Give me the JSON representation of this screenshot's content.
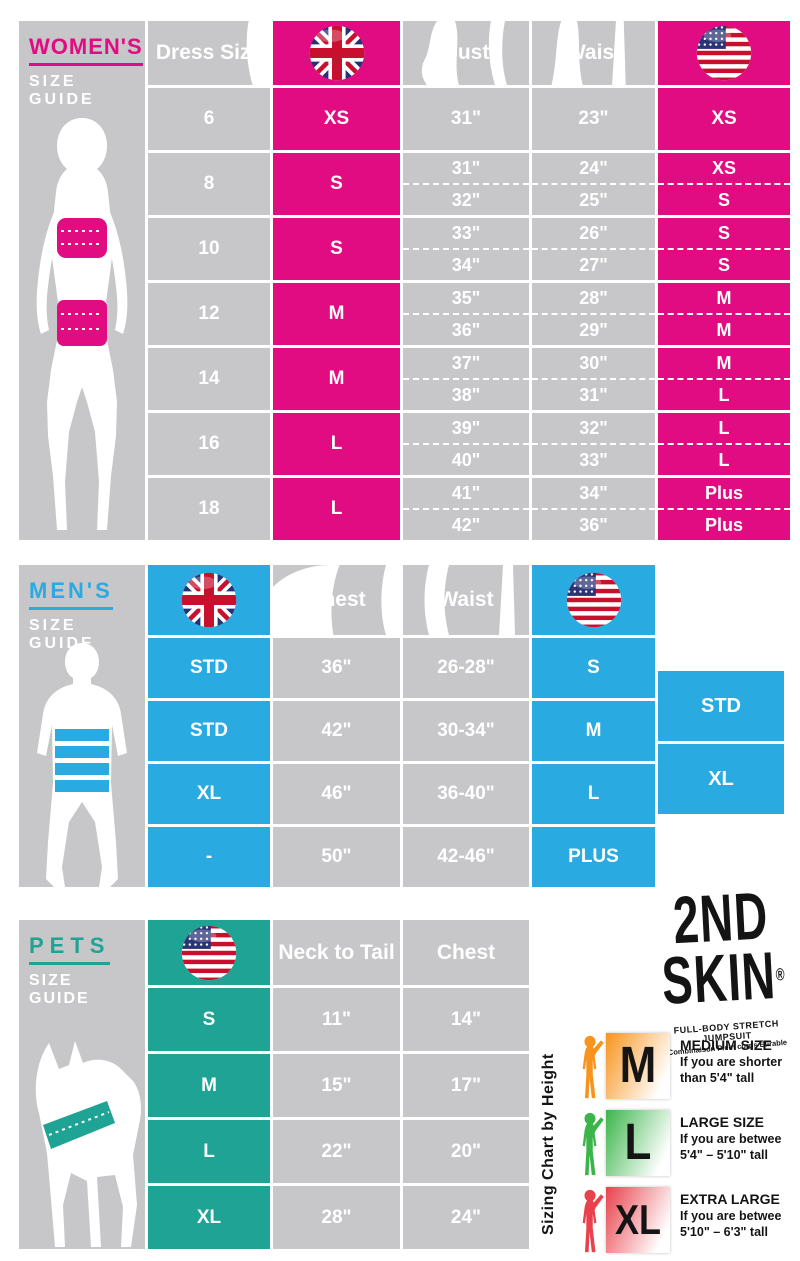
{
  "colors": {
    "pink": "#E20C82",
    "blue": "#29ABE2",
    "teal": "#1FA394",
    "gray": "#C7C6C8"
  },
  "women": {
    "title": "WOMEN'S",
    "subtitle": "SIZE GUIDE",
    "headers": {
      "dress": "Dress Size",
      "bust": "Bust",
      "waist": "Waist"
    },
    "rows": [
      {
        "dress": "6",
        "uk": "XS",
        "bust": [
          "31\""
        ],
        "waist": [
          "23\""
        ],
        "us": [
          "XS"
        ]
      },
      {
        "dress": "8",
        "uk": "S",
        "bust": [
          "31\"",
          "32\""
        ],
        "waist": [
          "24\"",
          "25\""
        ],
        "us": [
          "XS",
          "S"
        ]
      },
      {
        "dress": "10",
        "uk": "S",
        "bust": [
          "33\"",
          "34\""
        ],
        "waist": [
          "26\"",
          "27\""
        ],
        "us": [
          "S",
          "S"
        ]
      },
      {
        "dress": "12",
        "uk": "M",
        "bust": [
          "35\"",
          "36\""
        ],
        "waist": [
          "28\"",
          "29\""
        ],
        "us": [
          "M",
          "M"
        ]
      },
      {
        "dress": "14",
        "uk": "M",
        "bust": [
          "37\"",
          "38\""
        ],
        "waist": [
          "30\"",
          "31\""
        ],
        "us": [
          "M",
          "L"
        ]
      },
      {
        "dress": "16",
        "uk": "L",
        "bust": [
          "39\"",
          "40\""
        ],
        "waist": [
          "32\"",
          "33\""
        ],
        "us": [
          "L",
          "L"
        ]
      },
      {
        "dress": "18",
        "uk": "L",
        "bust": [
          "41\"",
          "42\""
        ],
        "waist": [
          "34\"",
          "36\""
        ],
        "us": [
          "Plus",
          "Plus"
        ]
      }
    ]
  },
  "men": {
    "title": "MEN'S",
    "subtitle": "SIZE GUIDE",
    "headers": {
      "chest": "Chest",
      "waist": "Waist"
    },
    "rows": [
      {
        "uk": "STD",
        "chest": "36\"",
        "waist": "26-28\"",
        "us": "S"
      },
      {
        "uk": "STD",
        "chest": "42\"",
        "waist": "30-34\"",
        "us": "M"
      },
      {
        "uk": "XL",
        "chest": "46\"",
        "waist": "36-40\"",
        "us": "L"
      },
      {
        "uk": "-",
        "chest": "50\"",
        "waist": "42-46\"",
        "us": "PLUS"
      }
    ],
    "side_boxes": [
      "STD",
      "XL"
    ]
  },
  "pets": {
    "title": "PETS",
    "subtitle": "SIZE GUIDE",
    "headers": {
      "neck": "Neck to Tail",
      "chest": "Chest"
    },
    "rows": [
      {
        "us": "S",
        "neck": "11\"",
        "chest": "14\""
      },
      {
        "us": "M",
        "neck": "15\"",
        "chest": "17\""
      },
      {
        "us": "L",
        "neck": "22\"",
        "chest": "20\""
      },
      {
        "us": "XL",
        "neck": "28\"",
        "chest": "24\""
      }
    ]
  },
  "logo": {
    "line1": "2ND",
    "line2": "SKIN",
    "reg": "®",
    "tagline1": "FULL-BODY STRETCH JUMPSUIT",
    "tagline2": "Combinaison Plein corps Étirable"
  },
  "legend": {
    "vertical_label": "Sizing Chart by Height",
    "items": [
      {
        "letter": "M",
        "heading": "MEDIUM SIZE",
        "line1": "If you are shorter",
        "line2": "than 5'4\" tall"
      },
      {
        "letter": "L",
        "heading": "LARGE SIZE",
        "line1": "If you are betwee",
        "line2": "5'4\" – 5'10\" tall"
      },
      {
        "letter": "XL",
        "heading": "EXTRA LARGE",
        "line1": "If you are betwee",
        "line2": "5'10\" – 6'3\" tall"
      }
    ]
  },
  "chart_data": [
    {
      "type": "table",
      "title": "Women's Size Guide",
      "columns": [
        "Dress Size",
        "UK Size",
        "Bust",
        "Waist",
        "US Size"
      ],
      "rows": [
        [
          "6",
          "XS",
          "31\"",
          "23\"",
          "XS"
        ],
        [
          "8",
          "S",
          "31\" / 32\"",
          "24\" / 25\"",
          "XS / S"
        ],
        [
          "10",
          "S",
          "33\" / 34\"",
          "26\" / 27\"",
          "S / S"
        ],
        [
          "12",
          "M",
          "35\" / 36\"",
          "28\" / 29\"",
          "M / M"
        ],
        [
          "14",
          "M",
          "37\" / 38\"",
          "30\" / 31\"",
          "M / L"
        ],
        [
          "16",
          "L",
          "39\" / 40\"",
          "32\" / 33\"",
          "L / L"
        ],
        [
          "18",
          "L",
          "41\" / 42\"",
          "34\" / 36\"",
          "Plus / Plus"
        ]
      ]
    },
    {
      "type": "table",
      "title": "Men's Size Guide",
      "columns": [
        "UK Size",
        "Chest",
        "Waist",
        "US Size"
      ],
      "rows": [
        [
          "STD",
          "36\"",
          "26-28\"",
          "S"
        ],
        [
          "STD",
          "42\"",
          "30-34\"",
          "M"
        ],
        [
          "XL",
          "46\"",
          "36-40\"",
          "L"
        ],
        [
          "-",
          "50\"",
          "42-46\"",
          "PLUS"
        ]
      ],
      "annotations": [
        "STD",
        "XL"
      ]
    },
    {
      "type": "table",
      "title": "Pets Size Guide",
      "columns": [
        "US Size",
        "Neck to Tail",
        "Chest"
      ],
      "rows": [
        [
          "S",
          "11\"",
          "14\""
        ],
        [
          "M",
          "15\"",
          "17\""
        ],
        [
          "L",
          "22\"",
          "20\""
        ],
        [
          "XL",
          "28\"",
          "24\""
        ]
      ]
    }
  ]
}
